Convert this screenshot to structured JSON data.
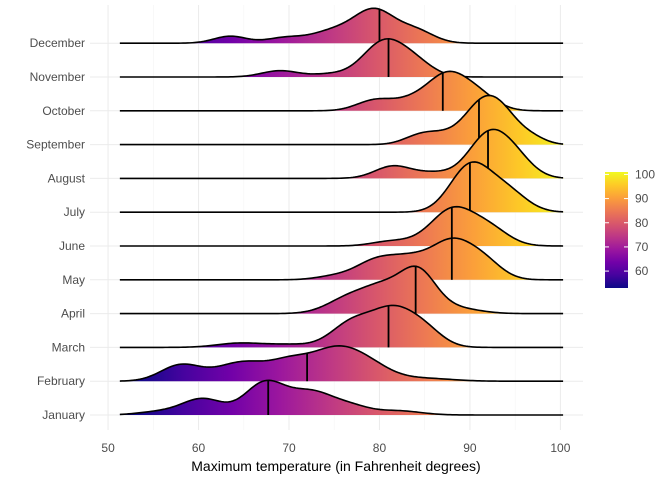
{
  "chart_data": {
    "type": "ridgeline",
    "title": "",
    "xlabel": "Maximum temperature (in Fahrenheit degrees)",
    "ylabel": "",
    "xlim": [
      48,
      102.5
    ],
    "x_ticks": [
      "50",
      "60",
      "70",
      "80",
      "90",
      "100"
    ],
    "grid": true,
    "legend": {
      "placement": "right",
      "type": "colorbar",
      "ticks": [
        "60",
        "70",
        "80",
        "90",
        "100"
      ],
      "range": [
        53,
        101
      ],
      "palette": [
        "#0d0887",
        "#46039f",
        "#7201a8",
        "#9c179e",
        "#bd3786",
        "#d8576b",
        "#ed7953",
        "#fb9f3a",
        "#fdca26",
        "#f0f921"
      ]
    },
    "series": [
      {
        "name": "January",
        "median": 67.7,
        "peaks": [
          [
            56,
            0.1,
            2.5
          ],
          [
            60.5,
            0.45,
            2.2
          ],
          [
            67.3,
            0.9,
            2.2
          ],
          [
            72.5,
            0.65,
            2.5
          ],
          [
            77,
            0.2,
            2
          ],
          [
            82,
            0.12,
            2.5
          ]
        ]
      },
      {
        "name": "February",
        "median": 72,
        "peaks": [
          [
            58,
            0.45,
            2.2
          ],
          [
            65,
            0.55,
            3
          ],
          [
            70,
            0.35,
            2
          ],
          [
            75,
            0.9,
            3
          ],
          [
            79,
            0.3,
            2.5
          ],
          [
            85,
            0.08,
            3
          ]
        ]
      },
      {
        "name": "March",
        "median": 81,
        "peaks": [
          [
            64.5,
            0.12,
            2.5
          ],
          [
            70,
            0.08,
            2.5
          ],
          [
            77,
            0.7,
            2.3
          ],
          [
            81.5,
            1.0,
            2.3
          ],
          [
            85,
            0.45,
            2
          ]
        ]
      },
      {
        "name": "April",
        "median": 84,
        "peaks": [
          [
            77,
            0.5,
            2.5
          ],
          [
            80.5,
            0.55,
            2
          ],
          [
            84.2,
            1.2,
            2
          ],
          [
            88.5,
            0.15,
            2.5
          ]
        ]
      },
      {
        "name": "May",
        "median": 88,
        "peaks": [
          [
            75,
            0.1,
            2
          ],
          [
            79.5,
            0.5,
            2.2
          ],
          [
            83.5,
            0.55,
            2.3
          ],
          [
            88,
            1.0,
            2.2
          ],
          [
            91.5,
            0.5,
            2
          ]
        ]
      },
      {
        "name": "June",
        "median": 88,
        "peaks": [
          [
            81,
            0.12,
            2
          ],
          [
            84,
            0.07,
            2
          ],
          [
            88,
            1.0,
            2.3
          ],
          [
            92,
            0.5,
            2.2
          ]
        ]
      },
      {
        "name": "July",
        "median": 90,
        "peaks": [
          [
            90,
            1.3,
            2.2
          ],
          [
            94,
            0.6,
            2.2
          ]
        ]
      },
      {
        "name": "August",
        "median": 92,
        "peaks": [
          [
            81.5,
            0.35,
            2
          ],
          [
            86,
            0.15,
            2
          ],
          [
            92,
            1.2,
            2.2
          ],
          [
            95,
            0.5,
            2
          ]
        ]
      },
      {
        "name": "September",
        "median": 91,
        "peaks": [
          [
            84.5,
            0.25,
            1.8
          ],
          [
            87,
            0.2,
            1.8
          ],
          [
            91,
            0.9,
            2
          ],
          [
            93.5,
            0.8,
            2
          ],
          [
            97,
            0.15,
            1.5
          ]
        ]
      },
      {
        "name": "October",
        "median": 87,
        "peaks": [
          [
            79.5,
            0.3,
            2
          ],
          [
            83.5,
            0.25,
            2
          ],
          [
            87.5,
            1.0,
            2.2
          ],
          [
            91,
            0.4,
            2
          ]
        ]
      },
      {
        "name": "November",
        "median": 81,
        "peaks": [
          [
            69,
            0.18,
            2
          ],
          [
            74.5,
            0.08,
            2
          ],
          [
            80.5,
            1.0,
            2.3
          ],
          [
            84,
            0.35,
            2
          ]
        ]
      },
      {
        "name": "December",
        "median": 80,
        "peaks": [
          [
            63.5,
            0.2,
            1.8
          ],
          [
            69.5,
            0.15,
            2
          ],
          [
            75,
            0.35,
            2.5
          ],
          [
            79.5,
            0.9,
            2.2
          ],
          [
            84,
            0.35,
            2
          ]
        ]
      }
    ]
  }
}
